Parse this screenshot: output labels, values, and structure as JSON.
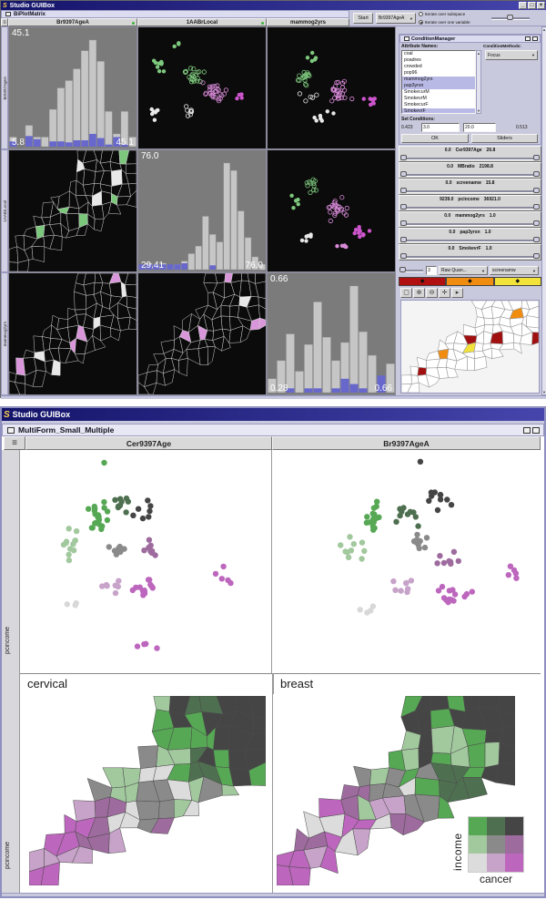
{
  "icons": {
    "s_logo": "S",
    "hamburger": "≡",
    "minimize": "_",
    "maximize": "□",
    "close": "×",
    "dropdown_arrow": "▼",
    "diamond": "◆",
    "scroll_up": "▲",
    "scroll_down": "▼"
  },
  "colors": {
    "titlebar_left": "#14146a",
    "titlebar_right": "#4545ac",
    "panel": "#c9c9dd",
    "hist_bg": "#7b7b7b",
    "hist_bar": "#c6c6c6",
    "hist_selected": "#6868cc",
    "black_bg": "#0b0b0b",
    "selection_highlight": "#b9b9e6",
    "header_dot": "#3db53d"
  },
  "cluster_fields": "color,cx,cy,sx,sy,count,filled",
  "top_window": {
    "title": "Studio GUIBox",
    "inner_title": "BiPlotMatrix",
    "headers": [
      "Br9397AgeA",
      "1AABrLocal",
      "mammog2yrs"
    ],
    "row_labels": [
      "Br9397AgeA",
      "1AABrLocal",
      "mammog2yrs"
    ],
    "toolbar": {
      "start": "Start",
      "variable": "Br9397AgeA",
      "radio_subspace": "Iterate over subspace",
      "radio_one_variable": "Iterate over one variable",
      "selected_radio": "Iterate over one variable"
    },
    "condition_manager": {
      "title": "ConditionManager",
      "attributes_label": "Attribute Names:",
      "methods_label": "ConditionMethods:",
      "method": "Focus",
      "attributes": [
        "coal",
        "poadres",
        "crowded",
        "pop96",
        "mammog2yrs",
        "pap3yrsn",
        "SmokecurM",
        "SmokevrM",
        "SmokecurF",
        "SmokevrF",
        "Obese",
        "Rural"
      ],
      "selected_attributes": [
        "mammog2yrs",
        "pap3yrsn",
        "SmokevrF"
      ],
      "set_conditions_label": "Set Conditions:",
      "range_min": "0.423",
      "value1": "3.0",
      "value2": "20.0",
      "range_max": "0.513",
      "ok_label": "OK",
      "sliders_label": "Sliders"
    },
    "sliders": [
      {
        "min": "0.0",
        "name": "Cer9397Age",
        "max": "26.8"
      },
      {
        "min": "0.0",
        "name": "MBratio",
        "max": "2198.8"
      },
      {
        "min": "0.0",
        "name": "screenamw",
        "max": "15.8"
      },
      {
        "min": "9239.0",
        "name": "pcincome",
        "max": "36921.0"
      },
      {
        "min": "0.0",
        "name": "mammog2yrs",
        "max": "1.0"
      },
      {
        "min": "0.0",
        "name": "pap3yrsn",
        "max": "1.0"
      },
      {
        "min": "0.0",
        "name": "SmokevrF",
        "max": "1.0"
      }
    ],
    "classifier": {
      "classes": "3",
      "method": "Raw Quan...",
      "variable": "screenamw",
      "ramp": [
        "#b01010",
        "#f08c10",
        "#f2e33a"
      ]
    },
    "map_toolbar": [
      {
        "name": "rect-select-icon",
        "glyph": "▢"
      },
      {
        "name": "zoom-in-icon",
        "glyph": "⊕"
      },
      {
        "name": "zoom-out-icon",
        "glyph": "⊖"
      },
      {
        "name": "pan-icon",
        "glyph": "✛"
      },
      {
        "name": "identify-icon",
        "glyph": "▸"
      }
    ],
    "histograms": [
      {
        "top_label": "45.1",
        "min_label": "5.8",
        "max_label": "45.1",
        "bars": [
          0.09,
          0,
          0.2,
          0.09,
          0.09,
          0.35,
          0.55,
          0.62,
          0.73,
          0.9,
          1.0,
          0.8,
          0.33,
          0.12,
          0.33,
          0.09
        ],
        "selected": [
          0.05,
          0,
          0.1,
          0.07,
          0,
          0.05,
          0.05,
          0.04,
          0.06,
          0.06,
          0.12,
          0.08,
          0.02,
          0.09,
          0.02,
          0
        ]
      },
      {
        "top_label": "76.0",
        "min_label": "29.41",
        "max_label": "76.0",
        "bars": [
          0.04,
          0.06,
          0.04,
          0.06,
          0.04,
          0.05,
          0.08,
          0.15,
          0.22,
          0.5,
          0.33,
          0.26,
          1.0,
          0.93,
          0.55,
          0.3,
          0.12,
          0.05
        ],
        "selected": [
          0.05,
          0.05,
          0.05,
          0.05,
          0.05,
          0.05,
          0.06,
          0,
          0,
          0,
          0.04,
          0,
          0,
          0,
          0,
          0,
          0,
          0
        ]
      },
      {
        "top_label": "0.66",
        "min_label": "0.28",
        "max_label": "0.66",
        "bars": [
          0.13,
          0.3,
          0.55,
          0.2,
          0.45,
          0.85,
          0.52,
          0.3,
          0.47,
          1.0,
          0.57,
          0.35,
          0.12,
          0.27
        ],
        "selected": [
          0,
          0,
          0.04,
          0,
          0.04,
          0.04,
          0,
          0.04,
          0.13,
          0.08,
          0.04,
          0,
          0.16,
          0
        ]
      }
    ],
    "scatters": [
      {
        "seed": 41,
        "r": 2.2,
        "clusters": [
          [
            "#7ec97e",
            0.17,
            0.33,
            0.09,
            0.13,
            9,
            1
          ],
          [
            "#e8e8e8",
            0.12,
            0.7,
            0.07,
            0.1,
            7,
            1
          ],
          [
            "#7ec97e",
            0.43,
            0.4,
            0.11,
            0.11,
            22,
            0
          ],
          [
            "#d88ad8",
            0.6,
            0.53,
            0.12,
            0.11,
            28,
            0
          ],
          [
            "#e8e8e8",
            0.4,
            0.68,
            0.09,
            0.07,
            8,
            0
          ],
          [
            "#cc55cc",
            0.8,
            0.58,
            0.07,
            0.09,
            4,
            1
          ],
          [
            "#7ec97e",
            0.3,
            0.15,
            0.05,
            0.05,
            3,
            1
          ]
        ]
      },
      {
        "seed": 42,
        "r": 2.2,
        "clusters": [
          [
            "#7ec97e",
            0.36,
            0.26,
            0.07,
            0.09,
            5,
            1
          ],
          [
            "#7ec97e",
            0.3,
            0.4,
            0.09,
            0.11,
            16,
            0
          ],
          [
            "#d88ad8",
            0.57,
            0.53,
            0.13,
            0.11,
            26,
            0
          ],
          [
            "#cc55cc",
            0.8,
            0.58,
            0.09,
            0.11,
            9,
            1
          ],
          [
            "#e8e8e8",
            0.45,
            0.73,
            0.11,
            0.07,
            7,
            1
          ],
          [
            "#e8e8e8",
            0.33,
            0.58,
            0.09,
            0.07,
            5,
            0
          ]
        ]
      },
      {
        "seed": 43,
        "r": 2.2,
        "clusters": [
          [
            "#7ec97e",
            0.34,
            0.28,
            0.09,
            0.09,
            11,
            0
          ],
          [
            "#d88ad8",
            0.54,
            0.48,
            0.12,
            0.12,
            24,
            0
          ],
          [
            "#cc55cc",
            0.74,
            0.66,
            0.11,
            0.09,
            11,
            1
          ],
          [
            "#e8e8e8",
            0.3,
            0.7,
            0.09,
            0.07,
            6,
            1
          ],
          [
            "#d88ad8",
            0.6,
            0.78,
            0.11,
            0.05,
            6,
            1
          ],
          [
            "#7ec97e",
            0.22,
            0.42,
            0.06,
            0.08,
            5,
            1
          ]
        ]
      }
    ],
    "maps": [
      {
        "seed": 11,
        "style": "dark",
        "accents": [
          "#7bc77b",
          "#7bc77b",
          "#e8e8e8"
        ],
        "prob": 0.1
      },
      {
        "seed": 12,
        "style": "dark",
        "accents": [
          "#da96da",
          "#da96da",
          "#e8e8e8"
        ],
        "prob": 0.1
      },
      {
        "seed": 13,
        "style": "dark",
        "accents": [
          "#da96da",
          "#da96da",
          "#e8e8e8"
        ],
        "prob": 0.11
      }
    ],
    "panel_map": {
      "seed": 14,
      "style": "panel",
      "accents": [
        "#a01010",
        "#a01010",
        "#f08c10",
        "#f2e33a"
      ],
      "prob": 0.09
    }
  },
  "bottom_window": {
    "title": "Studio GUIBox",
    "inner_title": "MultiForm_Small_Multiple",
    "headers": [
      "Cer9397Age",
      "Br9397AgeA"
    ],
    "row_axis_labels": [
      "pcincome",
      "pcincome"
    ],
    "map_labels": [
      "cervical",
      "breast"
    ],
    "legend": {
      "y_label": "income",
      "x_label": "cancer",
      "colors": [
        [
          "#56a854",
          "#4e7050",
          "#454545"
        ],
        [
          "#a2c89e",
          "#8a8a8a",
          "#9e6b9e"
        ],
        [
          "#dcdcdc",
          "#c7a3c9",
          "#bd66bd"
        ]
      ]
    },
    "map_palette_order": [
      "#bd66bd",
      "#c7a3c9",
      "#9e6b9e",
      "#dcdcdc",
      "#8a8a8a",
      "#a2c89e",
      "#56a854",
      "#4e7050",
      "#454545"
    ],
    "scatters": [
      {
        "seed": 31,
        "r": 3.2,
        "clusters": [
          [
            "#56a854",
            0.3,
            0.3,
            0.07,
            0.09,
            20,
            1
          ],
          [
            "#a2c89e",
            0.21,
            0.43,
            0.06,
            0.1,
            12,
            1
          ],
          [
            "#4e7050",
            0.4,
            0.26,
            0.05,
            0.07,
            10,
            1
          ],
          [
            "#454545",
            0.5,
            0.27,
            0.08,
            0.09,
            7,
            1
          ],
          [
            "#8a8a8a",
            0.4,
            0.45,
            0.07,
            0.06,
            9,
            1
          ],
          [
            "#9e6b9e",
            0.52,
            0.45,
            0.06,
            0.06,
            8,
            1
          ],
          [
            "#bd66bd",
            0.5,
            0.62,
            0.09,
            0.07,
            14,
            1
          ],
          [
            "#c7a3c9",
            0.36,
            0.61,
            0.06,
            0.05,
            7,
            1
          ],
          [
            "#bd66bd",
            0.8,
            0.57,
            0.08,
            0.06,
            5,
            1
          ],
          [
            "#d8d8d8",
            0.2,
            0.7,
            0.05,
            0.04,
            3,
            1
          ],
          [
            "#56a854",
            0.33,
            0.05,
            0.02,
            0.02,
            1,
            1
          ],
          [
            "#bd66bd",
            0.5,
            0.88,
            0.1,
            0.04,
            4,
            1
          ]
        ]
      },
      {
        "seed": 32,
        "r": 3.2,
        "clusters": [
          [
            "#56a854",
            0.38,
            0.3,
            0.07,
            0.09,
            16,
            1
          ],
          [
            "#a2c89e",
            0.3,
            0.45,
            0.06,
            0.09,
            10,
            1
          ],
          [
            "#4e7050",
            0.5,
            0.28,
            0.06,
            0.08,
            10,
            1
          ],
          [
            "#454545",
            0.62,
            0.22,
            0.08,
            0.08,
            10,
            1
          ],
          [
            "#8a8a8a",
            0.55,
            0.42,
            0.08,
            0.07,
            10,
            1
          ],
          [
            "#9e6b9e",
            0.65,
            0.5,
            0.07,
            0.06,
            8,
            1
          ],
          [
            "#bd66bd",
            0.68,
            0.65,
            0.1,
            0.08,
            14,
            1
          ],
          [
            "#c7a3c9",
            0.5,
            0.62,
            0.07,
            0.06,
            8,
            1
          ],
          [
            "#bd66bd",
            0.9,
            0.55,
            0.05,
            0.08,
            5,
            1
          ],
          [
            "#d8d8d8",
            0.35,
            0.72,
            0.06,
            0.05,
            4,
            1
          ],
          [
            "#454545",
            0.55,
            0.06,
            0.02,
            0.02,
            1,
            1
          ]
        ]
      }
    ],
    "maps": [
      {
        "seed": 21,
        "style": "biv"
      },
      {
        "seed": 22,
        "style": "biv"
      }
    ]
  }
}
